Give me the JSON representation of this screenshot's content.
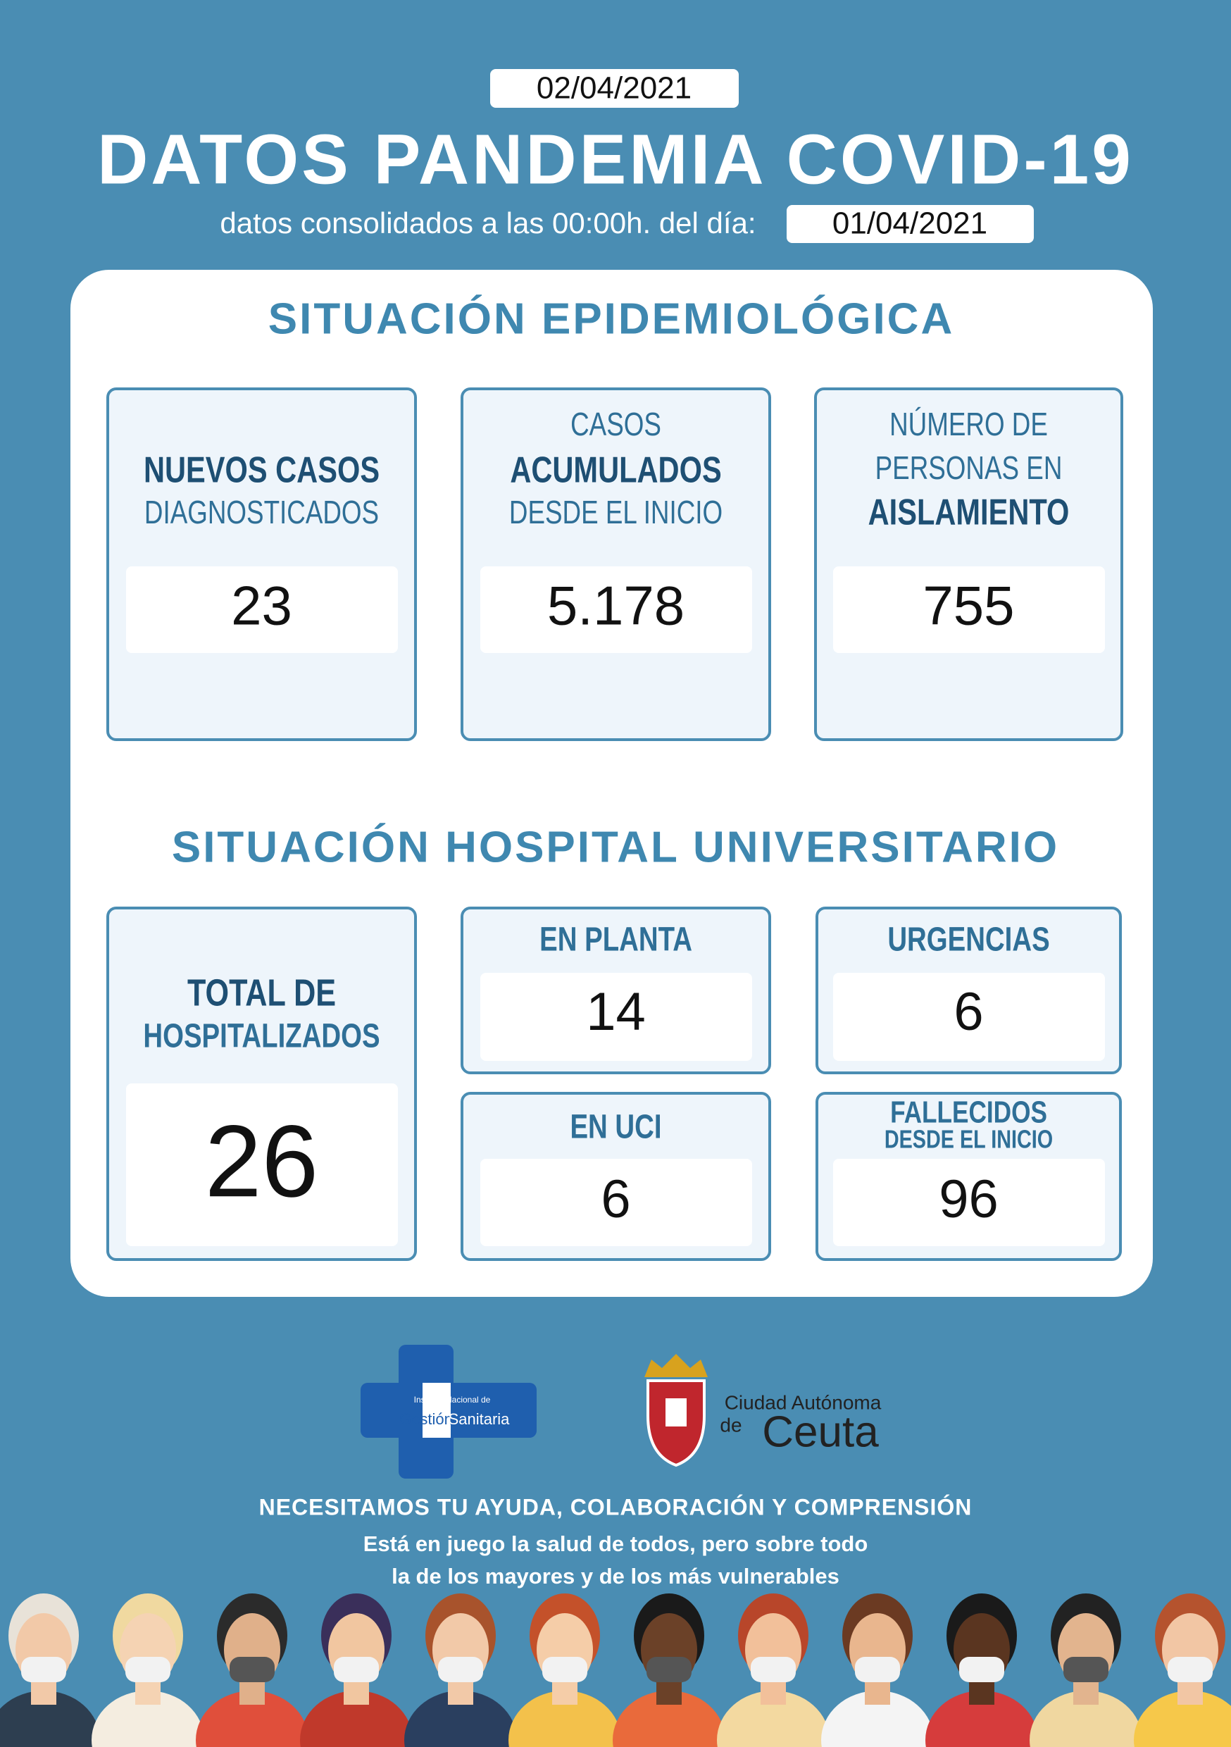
{
  "header": {
    "report_date": "02/04/2021",
    "title": "DATOS PANDEMIA COVID-19",
    "subtitle": "datos consolidados a las 00:00h. del día:",
    "data_date": "01/04/2021"
  },
  "epidemiological": {
    "title": "SITUACIÓN EPIDEMIOLÓGICA",
    "cards": [
      {
        "lines": [
          "NUEVOS CASOS",
          "DIAGNOSTICADOS"
        ],
        "value": "23"
      },
      {
        "lines": [
          "CASOS",
          "ACUMULADOS",
          "DESDE EL INICIO"
        ],
        "value": "5.178"
      },
      {
        "lines": [
          "NÚMERO DE",
          "PERSONAS EN",
          "AISLAMIENTO"
        ],
        "value": "755"
      }
    ]
  },
  "hospital": {
    "title": "SITUACIÓN HOSPITAL UNIVERSITARIO",
    "cards": [
      {
        "lines": [
          "TOTAL DE",
          "HOSPITALIZADOS"
        ],
        "value": "26"
      },
      {
        "lines": [
          "EN PLANTA"
        ],
        "value": "14"
      },
      {
        "lines": [
          "URGENCIAS"
        ],
        "value": "6"
      },
      {
        "lines": [
          "EN UCI"
        ],
        "value": "6"
      },
      {
        "lines": [
          "FALLECIDOS",
          "DESDE EL INICIO"
        ],
        "value": "96"
      }
    ]
  },
  "logos": {
    "ingesa": [
      "Instituto Nacional de",
      "Gestión",
      "Sanitaria"
    ],
    "ceuta": [
      "Ciudad Autónoma",
      "de",
      "Ceuta"
    ]
  },
  "footer": {
    "slogan": "NECESITAMOS TU AYUDA, COLABORACIÓN  Y COMPRENSIÓN",
    "lines": [
      "Está en juego la salud de todos, pero sobre todo",
      "la de los mayores y de los más vulnerables"
    ]
  }
}
